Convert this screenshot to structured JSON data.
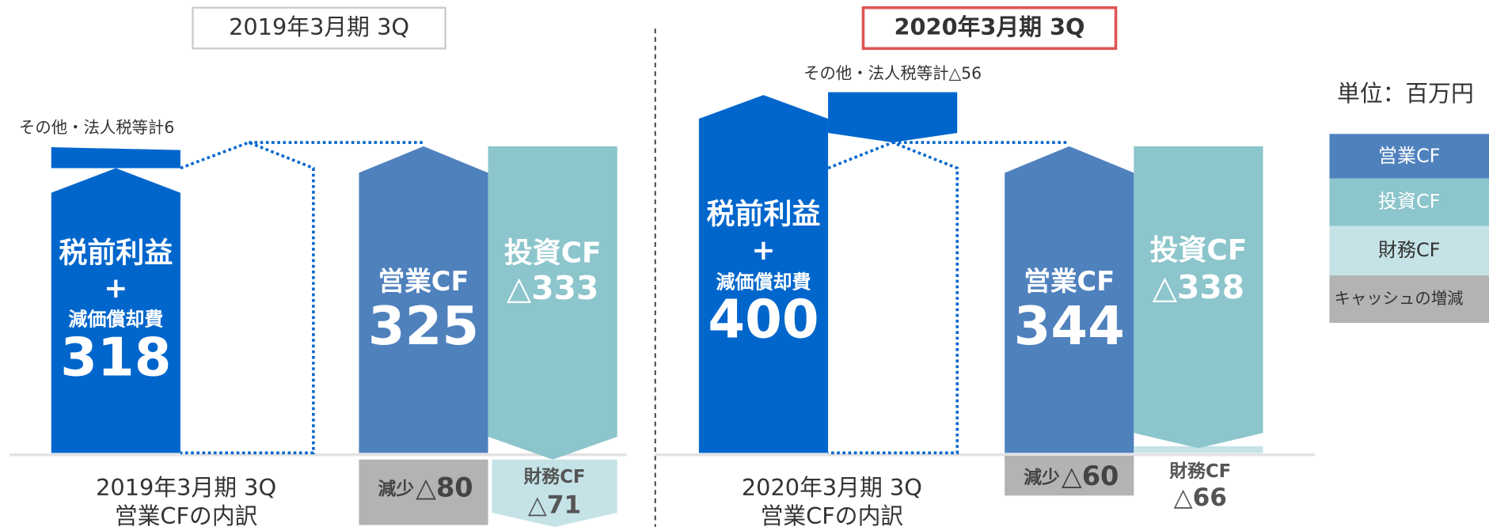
{
  "panels": [
    {
      "header": "2019年3月期 3Q",
      "other_label": "その他・法人税等計6",
      "pretax": {
        "title": "税前利益",
        "plus": "+",
        "sub": "減価償却費",
        "value": "318"
      },
      "operating": {
        "label": "営業CF",
        "value": "325"
      },
      "investing": {
        "label": "投資CF",
        "value": "△333"
      },
      "cash_change": {
        "label": "減少",
        "value": "△80"
      },
      "financing": {
        "label": "財務CF",
        "value": "△71"
      },
      "footer": [
        "2019年3月期 3Q",
        "営業CFの内訳"
      ]
    },
    {
      "header": "2020年3月期 3Q",
      "other_label": "その他・法人税等計△56",
      "pretax": {
        "title": "税前利益",
        "plus": "+",
        "sub": "減価償却費",
        "value": "400"
      },
      "operating": {
        "label": "営業CF",
        "value": "344"
      },
      "investing": {
        "label": "投資CF",
        "value": "△338"
      },
      "cash_change": {
        "label": "減少",
        "value": "△60"
      },
      "financing": {
        "label": "財務CF",
        "value": "△66"
      },
      "footer": [
        "2020年3月期 3Q",
        "営業CFの内訳"
      ]
    }
  ],
  "legend": {
    "unit": "単位：百万円",
    "items": [
      "営業CF",
      "投資CF",
      "財務CF",
      "キャッシュの増減"
    ]
  }
}
